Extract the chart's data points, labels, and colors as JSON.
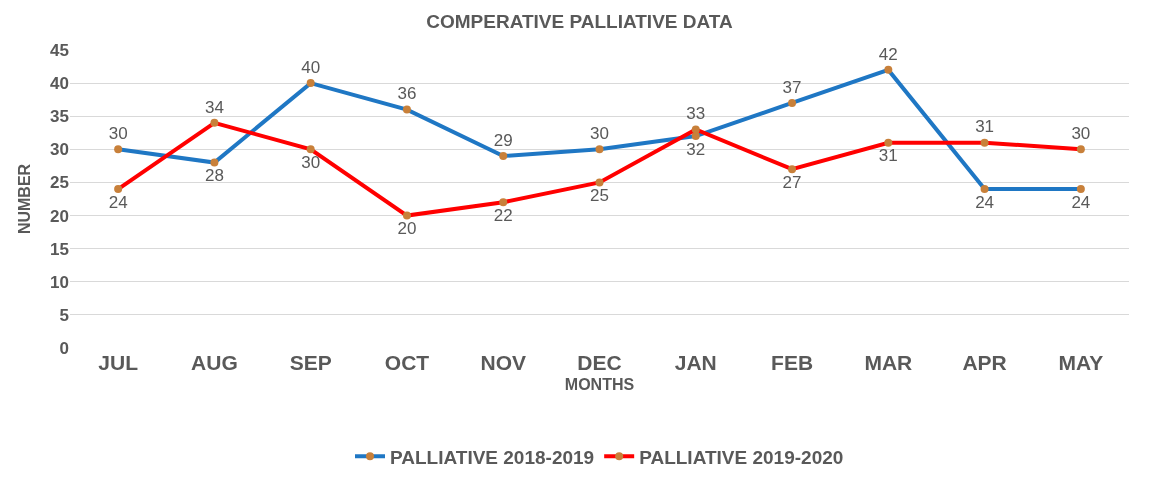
{
  "chart_data": {
    "type": "line",
    "title": "COMPERATIVE PALLIATIVE DATA",
    "xlabel": "MONTHS",
    "ylabel": "NUMBER",
    "categories": [
      "JUL",
      "AUG",
      "SEP",
      "OCT",
      "NOV",
      "DEC",
      "JAN",
      "FEB",
      "MAR",
      "APR",
      "MAY"
    ],
    "series": [
      {
        "name": "PALLIATIVE 2018-2019",
        "color": "#1f77c4",
        "values": [
          30,
          28,
          40,
          36,
          29,
          30,
          32,
          37,
          42,
          24,
          24
        ]
      },
      {
        "name": "PALLIATIVE 2019-2020",
        "color": "#ff0000",
        "values": [
          24,
          34,
          30,
          20,
          22,
          25,
          33,
          27,
          31,
          31,
          30
        ]
      }
    ],
    "ylim": [
      0,
      45
    ],
    "yticks": [
      0,
      5,
      10,
      15,
      20,
      25,
      30,
      35,
      40,
      45
    ],
    "grid": "y",
    "legend": "bottom",
    "data_labels": true,
    "marker": "circle",
    "line_style": "solid"
  }
}
